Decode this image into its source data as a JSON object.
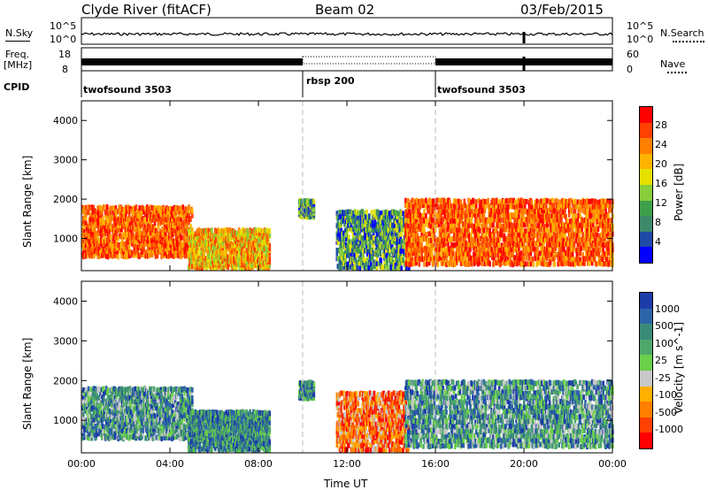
{
  "header": {
    "station": "Clyde River (fitACF)",
    "beam": "Beam 02",
    "date": "03/Feb/2015"
  },
  "top_panels": {
    "nsky_label": "N.Sky",
    "nsky_ticks": [
      "10^5",
      "10^0"
    ],
    "nsearch_label": "N.Search",
    "nsearch_ticks": [
      "10^5",
      "10^0"
    ],
    "freq_label": "Freq.",
    "freq_unit": "[MHz]",
    "freq_ticks": [
      "18",
      "8"
    ],
    "nave_label": "Nave",
    "nave_ticks": [
      "60",
      "0"
    ],
    "cpid_label": "CPID",
    "cpid_segments": [
      {
        "name": "twofsound 3503",
        "start_h": 0,
        "end_h": 10
      },
      {
        "name": "rbsp 200",
        "start_h": 10,
        "end_h": 16
      },
      {
        "name": "twofsound 3503",
        "start_h": 16,
        "end_h": 24
      }
    ]
  },
  "chart_data": [
    {
      "type": "heatmap",
      "title": "",
      "xlabel": "Time UT",
      "ylabel": "Slant Range [km]",
      "xlim": [
        0,
        24
      ],
      "ylim": [
        180,
        4500
      ],
      "xticks": [
        "00:00",
        "04:00",
        "08:00",
        "12:00",
        "16:00",
        "20:00",
        "00:00"
      ],
      "yticks": [
        1000,
        2000,
        3000,
        4000
      ],
      "colorbar": {
        "title": "Power [dB]",
        "ticks": [
          "28",
          "24",
          "20",
          "16",
          "12",
          "8",
          "4"
        ],
        "colors": [
          "#ff0000",
          "#ff4000",
          "#ff8000",
          "#ffb300",
          "#e6e000",
          "#8acd3a",
          "#3ea04a",
          "#3d8a6a",
          "#1f4aa8",
          "#0000ff"
        ]
      },
      "echo_regions": [
        {
          "t0": 0.0,
          "t1": 5.0,
          "r0": 600,
          "r1": 1900,
          "level": "strong"
        },
        {
          "t0": 4.8,
          "t1": 8.5,
          "r0": 300,
          "r1": 1300,
          "level": "moderate"
        },
        {
          "t0": 9.8,
          "t1": 10.5,
          "r0": 1600,
          "r1": 2000,
          "level": "weak"
        },
        {
          "t0": 11.5,
          "t1": 14.8,
          "r0": 300,
          "r1": 1800,
          "level": "weak"
        },
        {
          "t0": 14.6,
          "t1": 24.0,
          "r0": 400,
          "r1": 2100,
          "level": "strong"
        }
      ]
    },
    {
      "type": "heatmap",
      "title": "",
      "xlabel": "Time UT",
      "ylabel": "Slant Range [km]",
      "xlim": [
        0,
        24
      ],
      "ylim": [
        180,
        4500
      ],
      "xticks": [
        "00:00",
        "04:00",
        "08:00",
        "12:00",
        "16:00",
        "20:00",
        "00:00"
      ],
      "yticks": [
        1000,
        2000,
        3000,
        4000
      ],
      "colorbar": {
        "title": "Velocity [m s^-1]",
        "ticks": [
          "1000",
          "500",
          "100",
          "25",
          "-25",
          "-100",
          "-500",
          "-1000"
        ],
        "colors": [
          "#1c3ca8",
          "#2c64a8",
          "#3a8a78",
          "#4ea86a",
          "#6bd04a",
          "#c8c8c8",
          "#ffb000",
          "#ff8000",
          "#ff4000",
          "#ff0000"
        ]
      },
      "echo_regions": [
        {
          "t0": 0.0,
          "t1": 5.0,
          "r0": 600,
          "r1": 1900,
          "level": "mixed"
        },
        {
          "t0": 4.8,
          "t1": 8.5,
          "r0": 300,
          "r1": 1300,
          "level": "toward"
        },
        {
          "t0": 9.8,
          "t1": 10.5,
          "r0": 1600,
          "r1": 2000,
          "level": "toward"
        },
        {
          "t0": 11.5,
          "t1": 14.8,
          "r0": 300,
          "r1": 1800,
          "level": "away"
        },
        {
          "t0": 14.6,
          "t1": 24.0,
          "r0": 400,
          "r1": 2100,
          "level": "mixed"
        }
      ]
    }
  ]
}
